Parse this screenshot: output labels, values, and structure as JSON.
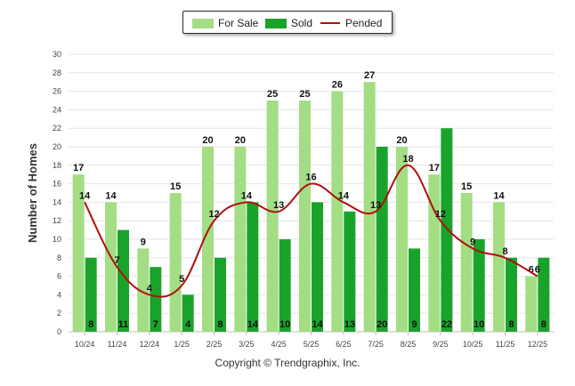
{
  "chart_data": {
    "type": "bar",
    "title": "",
    "xlabel": "",
    "ylabel": "Number of Homes",
    "ylim": [
      0,
      30
    ],
    "ytick_step": 2,
    "categories": [
      "10/24",
      "11/24",
      "12/24",
      "1/25",
      "2/25",
      "3/25",
      "4/25",
      "5/25",
      "6/25",
      "7/25",
      "8/25",
      "9/25",
      "10/25",
      "11/25",
      "12/25"
    ],
    "series": [
      {
        "name": "For Sale",
        "kind": "bar",
        "color": "#a3dd84",
        "values": [
          17,
          14,
          9,
          15,
          20,
          20,
          25,
          25,
          26,
          27,
          20,
          17,
          15,
          14,
          6
        ]
      },
      {
        "name": "Sold",
        "kind": "bar",
        "color": "#1aa32a",
        "values": [
          8,
          11,
          7,
          4,
          8,
          14,
          10,
          14,
          13,
          20,
          9,
          22,
          10,
          8,
          8
        ]
      },
      {
        "name": "Pended",
        "kind": "line",
        "color": "#b01010",
        "values": [
          14,
          7,
          4,
          5,
          12,
          14,
          13,
          16,
          14,
          13,
          18,
          12,
          9,
          8,
          6
        ]
      }
    ],
    "legend_position": "top-center",
    "grid": true
  },
  "footer": {
    "copyright": "Copyright © Trendgraphix, Inc."
  }
}
